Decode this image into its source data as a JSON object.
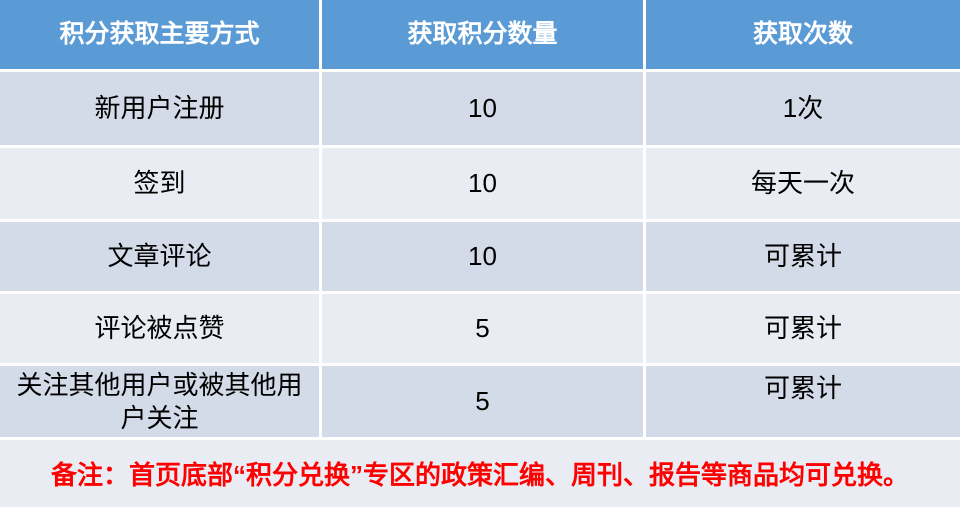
{
  "chart_data": {
    "type": "table",
    "columns": [
      "积分获取主要方式",
      "获取积分数量",
      "获取次数"
    ],
    "rows": [
      [
        "新用户注册",
        "10",
        "1次"
      ],
      [
        "签到",
        "10",
        "每天一次"
      ],
      [
        "文章评论",
        "10",
        "可累计"
      ],
      [
        "评论被点赞",
        "5",
        "可累计"
      ],
      [
        "关注其他用户或被其他用户关注",
        "5",
        "可累计"
      ]
    ],
    "note": "备注：首页底部“积分兑换”专区的政策汇编、周刊、报告等商品均可兑换。",
    "legend_position": "none",
    "grid": "white-3px-dividers",
    "banding": "alternating-rows"
  },
  "colors": {
    "header_bg": "#5B9BD5",
    "header_text": "#FFFFFF",
    "band_dark": "#D3DAE8",
    "band_light": "#E9ECF3",
    "body_text": "#000000",
    "note_text": "#FF0000",
    "divider": "#FFFFFF"
  }
}
